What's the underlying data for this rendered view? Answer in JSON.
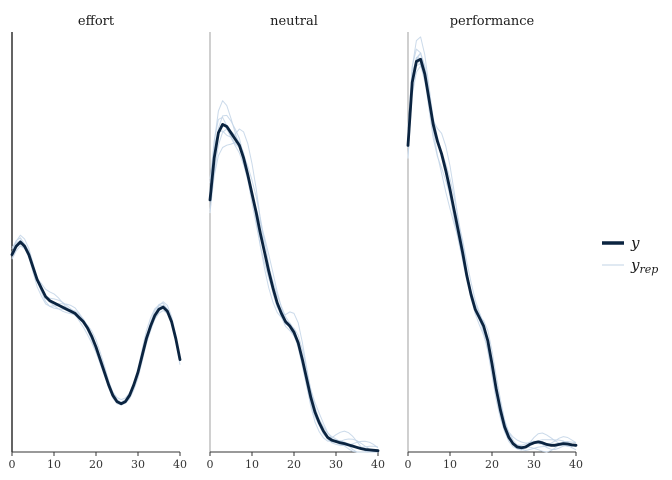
{
  "chart_data": {
    "type": "line",
    "title": "",
    "xlabel": "",
    "ylabel": "",
    "xlim": [
      0,
      40
    ],
    "xticks": [
      0,
      10,
      20,
      30,
      40
    ],
    "ylim": [
      0,
      1
    ],
    "grid": false,
    "legend_position": "right",
    "legend": {
      "y_label": "y",
      "yrep_label": "y",
      "yrep_subscript": "rep"
    },
    "colors": {
      "y": "#0b2440",
      "yrep": "#c2d3e6",
      "axis": "#333333"
    },
    "series_meaning": {
      "y": "observed density (thick dark line)",
      "yrep": "replicated densities (thin light lines)"
    },
    "panels": [
      {
        "title": "effort",
        "y": [
          [
            0,
            0.47
          ],
          [
            1,
            0.49
          ],
          [
            2,
            0.5
          ],
          [
            3,
            0.49
          ],
          [
            4,
            0.47
          ],
          [
            5,
            0.44
          ],
          [
            6,
            0.41
          ],
          [
            7,
            0.39
          ],
          [
            8,
            0.37
          ],
          [
            9,
            0.36
          ],
          [
            10,
            0.355
          ],
          [
            11,
            0.35
          ],
          [
            12,
            0.345
          ],
          [
            13,
            0.34
          ],
          [
            14,
            0.335
          ],
          [
            15,
            0.33
          ],
          [
            16,
            0.32
          ],
          [
            17,
            0.31
          ],
          [
            18,
            0.295
          ],
          [
            19,
            0.275
          ],
          [
            20,
            0.25
          ],
          [
            21,
            0.22
          ],
          [
            22,
            0.19
          ],
          [
            23,
            0.16
          ],
          [
            24,
            0.135
          ],
          [
            25,
            0.12
          ],
          [
            26,
            0.115
          ],
          [
            27,
            0.12
          ],
          [
            28,
            0.135
          ],
          [
            29,
            0.16
          ],
          [
            30,
            0.19
          ],
          [
            31,
            0.23
          ],
          [
            32,
            0.27
          ],
          [
            33,
            0.3
          ],
          [
            34,
            0.325
          ],
          [
            35,
            0.34
          ],
          [
            36,
            0.345
          ],
          [
            37,
            0.335
          ],
          [
            38,
            0.31
          ],
          [
            39,
            0.27
          ],
          [
            40,
            0.22
          ]
        ],
        "yrep_offsets": [
          0.012,
          -0.008,
          0.018,
          -0.015,
          0.006,
          -0.003,
          0.01,
          -0.011
        ]
      },
      {
        "title": "neutral",
        "y": [
          [
            0,
            0.6
          ],
          [
            1,
            0.7
          ],
          [
            2,
            0.76
          ],
          [
            3,
            0.78
          ],
          [
            4,
            0.775
          ],
          [
            5,
            0.76
          ],
          [
            6,
            0.745
          ],
          [
            7,
            0.73
          ],
          [
            8,
            0.7
          ],
          [
            9,
            0.66
          ],
          [
            10,
            0.615
          ],
          [
            11,
            0.57
          ],
          [
            12,
            0.52
          ],
          [
            13,
            0.475
          ],
          [
            14,
            0.43
          ],
          [
            15,
            0.39
          ],
          [
            16,
            0.355
          ],
          [
            17,
            0.33
          ],
          [
            18,
            0.31
          ],
          [
            19,
            0.3
          ],
          [
            20,
            0.285
          ],
          [
            21,
            0.26
          ],
          [
            22,
            0.22
          ],
          [
            23,
            0.175
          ],
          [
            24,
            0.13
          ],
          [
            25,
            0.095
          ],
          [
            26,
            0.07
          ],
          [
            27,
            0.05
          ],
          [
            28,
            0.035
          ],
          [
            29,
            0.028
          ],
          [
            30,
            0.025
          ],
          [
            31,
            0.022
          ],
          [
            32,
            0.02
          ],
          [
            33,
            0.017
          ],
          [
            34,
            0.014
          ],
          [
            35,
            0.011
          ],
          [
            36,
            0.008
          ],
          [
            37,
            0.006
          ],
          [
            38,
            0.005
          ],
          [
            39,
            0.004
          ],
          [
            40,
            0.003
          ]
        ],
        "yrep_offsets": [
          0.03,
          -0.02,
          0.045,
          -0.01,
          0.015,
          -0.03,
          0.025,
          0.005
        ]
      },
      {
        "title": "performance",
        "y": [
          [
            0,
            0.73
          ],
          [
            1,
            0.88
          ],
          [
            2,
            0.93
          ],
          [
            3,
            0.935
          ],
          [
            4,
            0.9
          ],
          [
            5,
            0.84
          ],
          [
            6,
            0.78
          ],
          [
            7,
            0.74
          ],
          [
            8,
            0.71
          ],
          [
            9,
            0.67
          ],
          [
            10,
            0.625
          ],
          [
            11,
            0.575
          ],
          [
            12,
            0.525
          ],
          [
            13,
            0.475
          ],
          [
            14,
            0.42
          ],
          [
            15,
            0.375
          ],
          [
            16,
            0.34
          ],
          [
            17,
            0.32
          ],
          [
            18,
            0.3
          ],
          [
            19,
            0.265
          ],
          [
            20,
            0.21
          ],
          [
            21,
            0.15
          ],
          [
            22,
            0.1
          ],
          [
            23,
            0.06
          ],
          [
            24,
            0.035
          ],
          [
            25,
            0.02
          ],
          [
            26,
            0.012
          ],
          [
            27,
            0.01
          ],
          [
            28,
            0.012
          ],
          [
            29,
            0.018
          ],
          [
            30,
            0.022
          ],
          [
            31,
            0.024
          ],
          [
            32,
            0.022
          ],
          [
            33,
            0.018
          ],
          [
            34,
            0.016
          ],
          [
            35,
            0.016
          ],
          [
            36,
            0.018
          ],
          [
            37,
            0.02
          ],
          [
            38,
            0.019
          ],
          [
            39,
            0.017
          ],
          [
            40,
            0.016
          ]
        ],
        "yrep_offsets": [
          0.025,
          -0.015,
          0.035,
          -0.02,
          0.01,
          -0.005,
          0.02,
          -0.03
        ]
      }
    ]
  }
}
